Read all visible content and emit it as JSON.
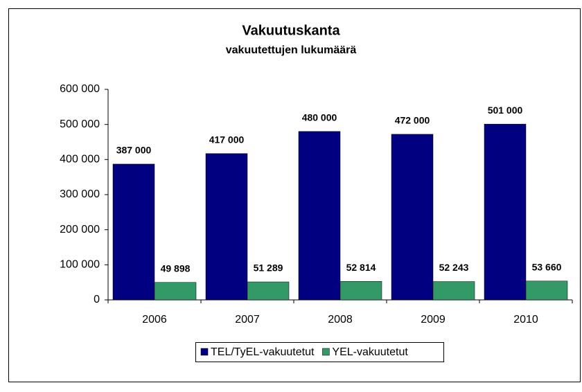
{
  "chart_data": {
    "type": "bar",
    "title": "Vakuutuskanta",
    "subtitle": "vakuutettujen lukumäärä",
    "categories": [
      "2006",
      "2007",
      "2008",
      "2009",
      "2010"
    ],
    "series": [
      {
        "name": "TEL/TyEL-vakuutetut",
        "color": "#000080",
        "values": [
          387000,
          417000,
          480000,
          472000,
          501000
        ],
        "value_labels": [
          "387 000",
          "417 000",
          "480 000",
          "472 000",
          "501 000"
        ]
      },
      {
        "name": "YEL-vakuutetut",
        "color": "#339966",
        "values": [
          49898,
          51289,
          52814,
          52243,
          53660
        ],
        "value_labels": [
          "49 898",
          "51 289",
          "52 814",
          "52 243",
          "53 660"
        ]
      }
    ],
    "ylim": [
      0,
      600000
    ],
    "yticks": [
      0,
      {
        "value": 100000,
        "label": "100 000"
      },
      {
        "value": 200000,
        "label": "200 000"
      },
      {
        "value": 300000,
        "label": "300 000"
      },
      {
        "value": 400000,
        "label": "400 000"
      },
      {
        "value": 500000,
        "label": "500 000"
      },
      {
        "value": 600000,
        "label": "600 000"
      }
    ],
    "grid": false,
    "legend": "bottom"
  }
}
